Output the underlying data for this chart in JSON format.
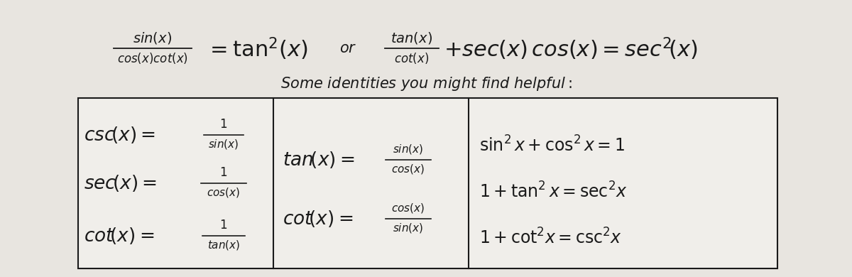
{
  "bg_color": "#e8e5e0",
  "table_bg": "#f0eeea",
  "text_color": "#1a1a1a",
  "figsize": [
    12.0,
    3.9
  ],
  "dpi": 100
}
